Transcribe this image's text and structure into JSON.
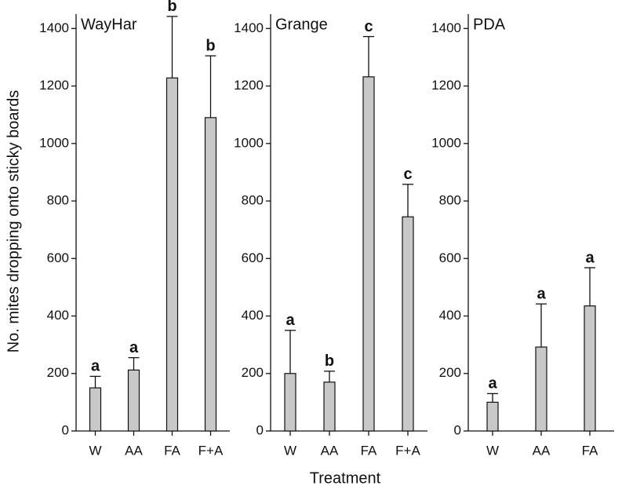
{
  "chart_data": [
    {
      "type": "bar",
      "title": "WayHar",
      "ylabel": "No. mites dropping onto sticky boards",
      "categories": [
        "W",
        "AA",
        "FA",
        "F+A"
      ],
      "values": [
        150,
        212,
        1228,
        1090
      ],
      "errors": [
        40,
        43,
        214,
        215
      ],
      "annotations": [
        "a",
        "a",
        "b",
        "b"
      ],
      "color": "#c8c8c8",
      "ylim": [
        0,
        1450
      ],
      "yticks": [
        0,
        200,
        400,
        600,
        800,
        1000,
        1200,
        1400
      ]
    },
    {
      "type": "bar",
      "title": "Grange",
      "xlabel": "Treatment",
      "categories": [
        "W",
        "AA",
        "FA",
        "F+A"
      ],
      "values": [
        200,
        170,
        1232,
        745
      ],
      "errors": [
        150,
        38,
        140,
        113
      ],
      "annotations": [
        "a",
        "b",
        "c",
        "c"
      ],
      "color": "#c8c8c8",
      "ylim": [
        0,
        1450
      ],
      "yticks": [
        0,
        200,
        400,
        600,
        800,
        1000,
        1200,
        1400
      ]
    },
    {
      "type": "bar",
      "title": "PDA",
      "categories": [
        "W",
        "AA",
        "FA"
      ],
      "values": [
        100,
        292,
        435
      ],
      "errors": [
        30,
        150,
        133
      ],
      "annotations": [
        "a",
        "a",
        "a"
      ],
      "color": "#c8c8c8",
      "ylim": [
        0,
        1450
      ],
      "yticks": [
        0,
        200,
        400,
        600,
        800,
        1000,
        1200,
        1400
      ]
    }
  ]
}
